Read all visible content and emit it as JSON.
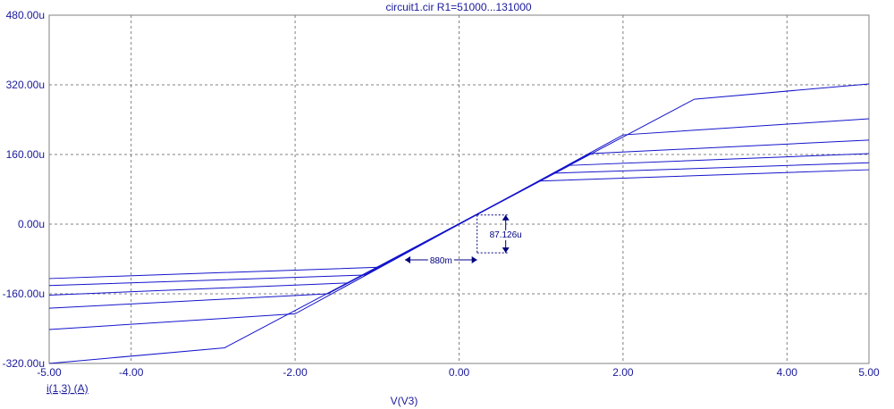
{
  "chart_data": {
    "type": "line",
    "title": "circuit1.cir R1=51000...131000",
    "xlabel": "V(V3)",
    "ylabel": "i(1,3) (A)",
    "xlim": [
      -5.0,
      5.0
    ],
    "ylim": [
      -320,
      480
    ],
    "y_unit": "u",
    "grid": true,
    "x_ticks": [
      {
        "value": -5.0,
        "label": "-5.00"
      },
      {
        "value": -4.0,
        "label": "-4.00"
      },
      {
        "value": -2.0,
        "label": "-2.00"
      },
      {
        "value": 0.0,
        "label": "0.00"
      },
      {
        "value": 2.0,
        "label": "2.00"
      },
      {
        "value": 4.0,
        "label": "4.00"
      },
      {
        "value": 5.0,
        "label": "5.00"
      }
    ],
    "y_ticks": [
      {
        "value": 480,
        "label": "480.00u"
      },
      {
        "value": 320,
        "label": "320.00u"
      },
      {
        "value": 160,
        "label": "160.00u"
      },
      {
        "value": 0,
        "label": "0.00u"
      },
      {
        "value": -160,
        "label": "-160.00u"
      },
      {
        "value": -320,
        "label": "-320.00u"
      }
    ],
    "series": [
      {
        "x": [
          -5.0,
          -2.86,
          2.87,
          5.0
        ],
        "y": [
          -320,
          -284,
          287,
          322
        ]
      },
      {
        "x": [
          -5.0,
          -2.0,
          2.0,
          5.0
        ],
        "y": [
          -242,
          -206,
          205,
          242
        ]
      },
      {
        "x": [
          -5.0,
          -1.6,
          1.6,
          5.0
        ],
        "y": [
          -193,
          -160,
          162,
          193
        ]
      },
      {
        "x": [
          -5.0,
          -1.35,
          1.35,
          5.0
        ],
        "y": [
          -163,
          -135,
          135,
          162
        ]
      },
      {
        "x": [
          -5.0,
          -1.15,
          1.15,
          5.0
        ],
        "y": [
          -141,
          -117,
          117,
          141
        ]
      },
      {
        "x": [
          -5.0,
          -0.98,
          0.98,
          5.0
        ],
        "y": [
          -125,
          -99,
          99,
          125
        ]
      }
    ],
    "annotations": [
      {
        "type": "dx",
        "label": "880m",
        "from": [
          -0.66,
          -82
        ],
        "to": [
          0.22,
          -82
        ]
      },
      {
        "type": "dy",
        "label": "87.126u",
        "from": [
          0.22,
          21
        ],
        "to": [
          0.22,
          -66
        ]
      }
    ]
  }
}
